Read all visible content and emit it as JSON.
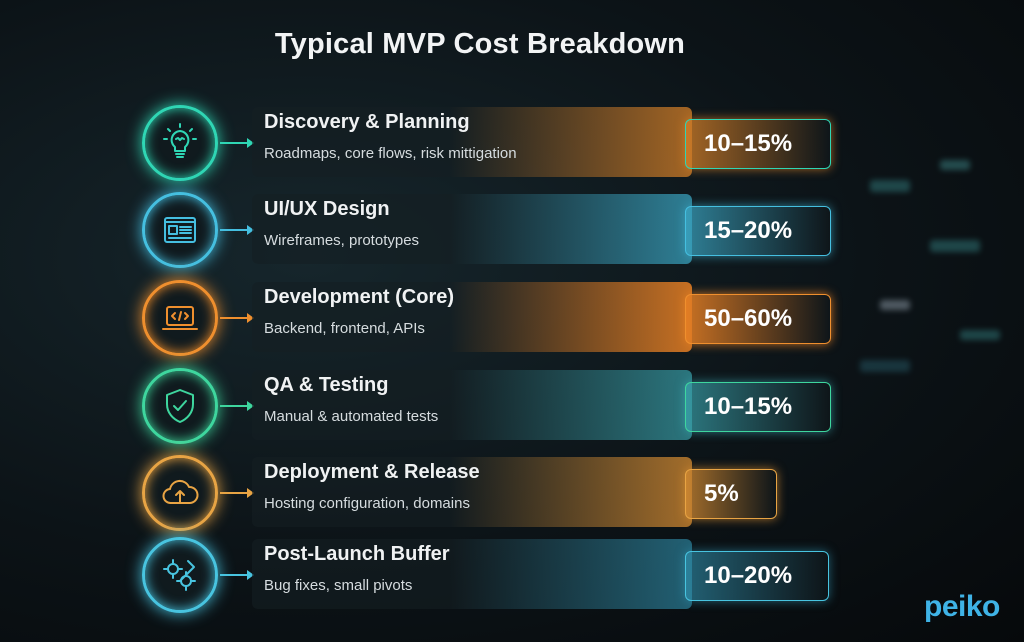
{
  "title": "Typical MVP Cost Breakdown",
  "items": [
    {
      "title": "Discovery & Planning",
      "description": "Roadmaps, core flows, risk mittigation",
      "percent": "10–15%",
      "icon": "lightbulb-icon",
      "color": "#2fd6b4",
      "glow": "rgba(214,128,40,0.75)"
    },
    {
      "title": "UI/UX Design",
      "description": "Wireframes, prototypes",
      "percent": "15–20%",
      "icon": "wireframe-window-icon",
      "color": "#45bfe0",
      "glow": "rgba(60,170,200,0.7)"
    },
    {
      "title": "Development (Core)",
      "description": "Backend, frontend, APIs",
      "percent": "50–60%",
      "icon": "code-laptop-icon",
      "color": "#ef8f2e",
      "glow": "rgba(232,128,36,0.85)"
    },
    {
      "title": "QA & Testing",
      "description": "Manual & automated tests",
      "percent": "10–15%",
      "icon": "shield-check-icon",
      "color": "#3ed69e",
      "glow": "rgba(60,170,180,0.65)"
    },
    {
      "title": "Deployment & Release",
      "description": "Hosting configuration, domains",
      "percent": "5%",
      "icon": "cloud-upload-icon",
      "color": "#e8a444",
      "glow": "rgba(214,140,50,0.75)"
    },
    {
      "title": "Post-Launch Buffer",
      "description": "Bug fixes, small pivots",
      "percent": "10–20%",
      "icon": "gears-wrench-icon",
      "color": "#48c4e0",
      "glow": "rgba(50,150,180,0.6)"
    }
  ],
  "logo": "peiko"
}
